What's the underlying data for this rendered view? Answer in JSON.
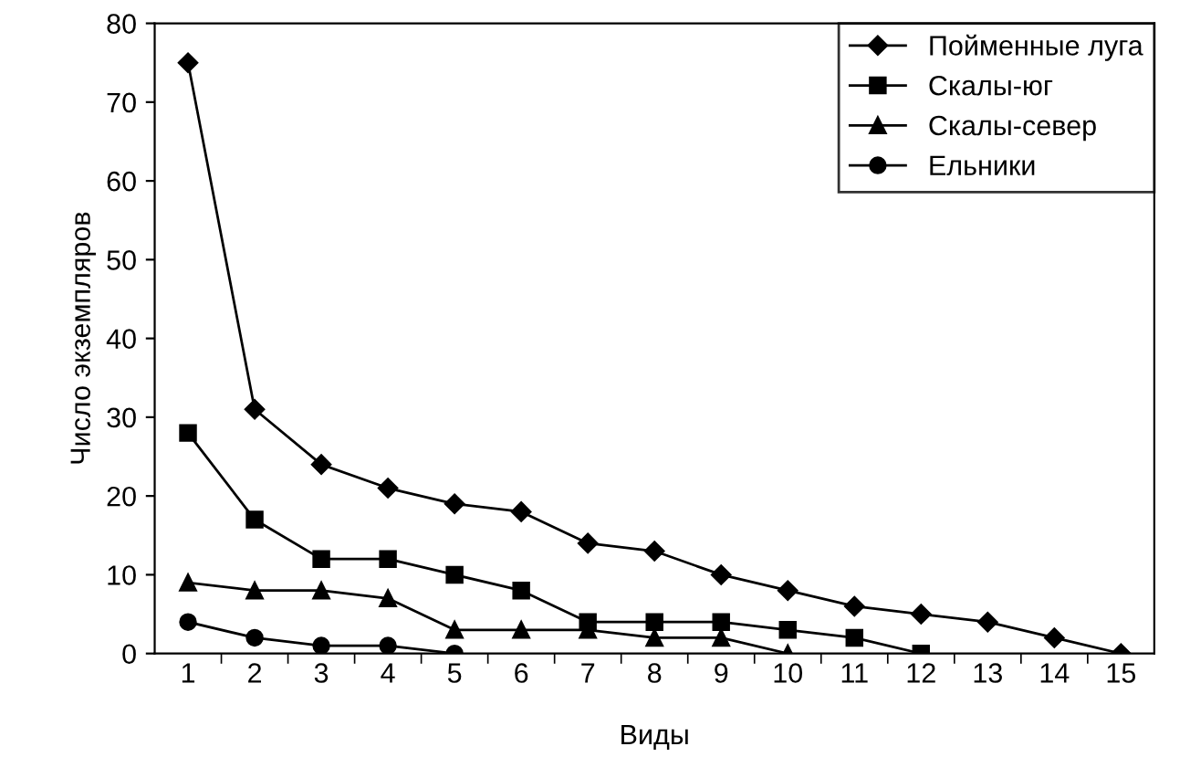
{
  "chart_data": {
    "type": "line",
    "xlabel": "Виды",
    "ylabel": "Число экземпляров",
    "categories": [
      "1",
      "2",
      "3",
      "4",
      "5",
      "6",
      "7",
      "8",
      "9",
      "10",
      "11",
      "12",
      "13",
      "14",
      "15"
    ],
    "series": [
      {
        "name": "Пойменные луга",
        "color": "#000000",
        "marker": "diamond",
        "values": [
          75,
          31,
          24,
          21,
          19,
          18,
          14,
          13,
          10,
          8,
          6,
          5,
          4,
          2,
          0
        ]
      },
      {
        "name": "Скалы-юг",
        "color": "#000000",
        "marker": "square",
        "values": [
          28,
          17,
          12,
          12,
          10,
          8,
          4,
          4,
          4,
          3,
          2,
          0,
          null,
          null,
          null
        ]
      },
      {
        "name": "Скалы-север",
        "color": "#000000",
        "marker": "triangle",
        "values": [
          9,
          8,
          8,
          7,
          3,
          3,
          3,
          2,
          2,
          0,
          null,
          null,
          null,
          null,
          null
        ]
      },
      {
        "name": "Ельники",
        "color": "#000000",
        "marker": "circle",
        "values": [
          4,
          2,
          1,
          1,
          0,
          null,
          null,
          null,
          null,
          null,
          null,
          null,
          null,
          null,
          null
        ]
      }
    ],
    "ylim": [
      0,
      80
    ],
    "yticks": [
      0,
      10,
      20,
      30,
      40,
      50,
      60,
      70,
      80
    ],
    "grid": false,
    "legend": "top right",
    "line_style": "solid"
  }
}
